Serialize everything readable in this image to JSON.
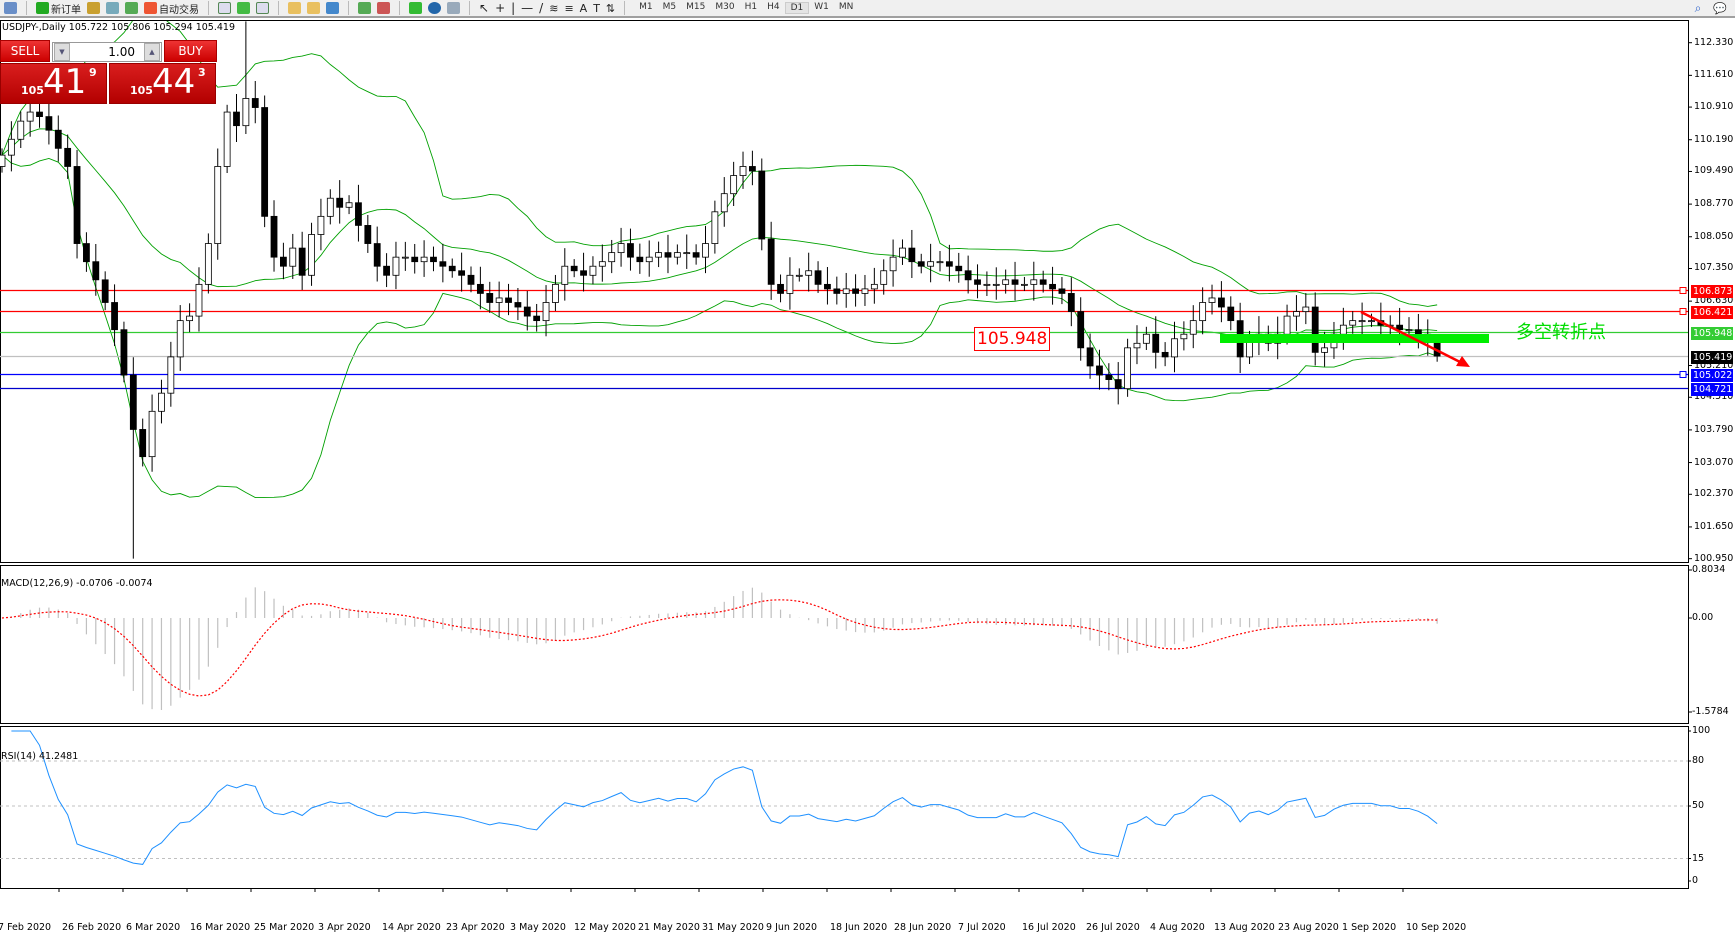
{
  "toolbar": {
    "new_order": "新订单",
    "auto_trading": "自动交易",
    "timeframes": [
      "M1",
      "M5",
      "M15",
      "M30",
      "H1",
      "H4",
      "D1",
      "W1",
      "MN"
    ],
    "active_timeframe": "D1",
    "icons": [
      "zoom-icon",
      "new-order-icon",
      "gold-icon",
      "cloud-icon",
      "signal-icon",
      "auto-trading-icon",
      "bar-chart-icon",
      "candle-chart-icon",
      "line-chart-icon",
      "zoom-in-icon",
      "zoom-out-icon",
      "tile-icon",
      "autoscroll-icon",
      "chart-shift-icon",
      "indicators-icon",
      "periods-icon",
      "templates-icon",
      "cursor-icon",
      "crosshair-icon",
      "vline-icon",
      "hline-icon",
      "trendline-icon",
      "fibo-icon",
      "fibo-fan-icon",
      "text-icon",
      "label-icon",
      "arrows-icon"
    ]
  },
  "chart": {
    "symbol_line": "USDJPY-,Daily  105.722 105.806 105.294 105.419",
    "widget": {
      "sell": "SELL",
      "buy": "BUY",
      "lot": "1.00",
      "sell_big": "105",
      "sell_main": "41",
      "sell_small": "9",
      "buy_big": "105",
      "buy_main": "44",
      "buy_small": "3"
    },
    "annotation_text": "多空转折点",
    "annotation_box": "105.948",
    "colors": {
      "red_line": "#ff0000",
      "green_line": "#00dd00",
      "blue_line": "#0000ff",
      "bands": "#00a000",
      "macd_signal": "#ff0000",
      "rsi": "#1e90ff"
    }
  },
  "chart_data": {
    "type": "candlestick",
    "closes": [
      109.85,
      110.2,
      110.6,
      110.8,
      110.7,
      110.4,
      110.0,
      109.6,
      107.9,
      107.5,
      107.1,
      106.6,
      106.0,
      105.0,
      103.8,
      103.2,
      104.2,
      104.6,
      105.4,
      106.2,
      106.3,
      107.0,
      107.9,
      109.6,
      110.8,
      110.5,
      111.1,
      110.9,
      108.5,
      107.6,
      107.4,
      107.8,
      107.2,
      108.1,
      108.5,
      108.9,
      108.7,
      108.8,
      108.3,
      107.9,
      107.4,
      107.2,
      107.6,
      107.6,
      107.5,
      107.6,
      107.5,
      107.4,
      107.3,
      107.2,
      107.0,
      106.8,
      106.6,
      106.7,
      106.6,
      106.5,
      106.3,
      106.2,
      106.6,
      107.0,
      107.4,
      107.3,
      107.2,
      107.4,
      107.5,
      107.7,
      107.9,
      107.6,
      107.5,
      107.6,
      107.7,
      107.6,
      107.7,
      107.7,
      107.6,
      107.9,
      108.6,
      109.0,
      109.4,
      109.6,
      109.5,
      108.0,
      107.0,
      106.8,
      107.2,
      107.2,
      107.3,
      107.0,
      106.9,
      106.8,
      106.9,
      106.8,
      106.9,
      107.0,
      107.3,
      107.6,
      107.8,
      107.5,
      107.4,
      107.5,
      107.5,
      107.4,
      107.3,
      107.1,
      107.0,
      107.0,
      107.0,
      107.1,
      107.0,
      107.0,
      107.1,
      107.0,
      106.9,
      106.8,
      106.4,
      105.6,
      105.2,
      105.0,
      104.9,
      104.7,
      105.6,
      105.7,
      105.9,
      105.5,
      105.4,
      105.8,
      105.9,
      106.2,
      106.6,
      106.7,
      106.5,
      106.2,
      105.4,
      105.8,
      105.9,
      105.7,
      105.9,
      106.3,
      106.4,
      106.5,
      105.5,
      105.6,
      105.9,
      106.1,
      106.2,
      106.2,
      106.2,
      106.1,
      106.1,
      106.0,
      106.0,
      105.9,
      105.722,
      105.419
    ],
    "last_bar": {
      "open": 105.722,
      "high": 105.806,
      "low": 105.294,
      "close": 105.419
    },
    "price_axis": [
      "112.330",
      "111.610",
      "110.910",
      "110.190",
      "109.490",
      "108.770",
      "108.050",
      "107.350",
      "106.630",
      "105.210",
      "104.510",
      "103.790",
      "103.070",
      "102.370",
      "101.650",
      "100.950"
    ],
    "price_range": [
      100.95,
      112.33
    ],
    "levels": [
      {
        "value": "106.873",
        "color": "#ff0000"
      },
      {
        "value": "106.421",
        "color": "#ff0000"
      },
      {
        "value": "105.948",
        "color": "#33cc33"
      },
      {
        "value": "105.419",
        "color": "#000000"
      },
      {
        "value": "105.022",
        "color": "#0000ff"
      },
      {
        "value": "104.721",
        "color": "#0000ff"
      }
    ],
    "indicators": {
      "bollinger": {
        "period": 20,
        "deviation": 2
      }
    },
    "dates": [
      "7 Feb 2020",
      "26 Feb 2020",
      "6 Mar 2020",
      "16 Mar 2020",
      "25 Mar 2020",
      "3 Apr 2020",
      "14 Apr 2020",
      "23 Apr 2020",
      "3 May 2020",
      "12 May 2020",
      "21 May 2020",
      "31 May 2020",
      "9 Jun 2020",
      "18 Jun 2020",
      "28 Jun 2020",
      "7 Jul 2020",
      "16 Jul 2020",
      "26 Jul 2020",
      "4 Aug 2020",
      "13 Aug 2020",
      "23 Aug 2020",
      "1 Sep 2020",
      "10 Sep 2020"
    ]
  },
  "macd": {
    "label": "MACD(12,26,9) -0.0706 -0.0074",
    "axis": [
      "0.8034",
      "0.00",
      "-1.5784"
    ],
    "max": 0.8034,
    "min": -1.5784
  },
  "rsi": {
    "label": "RSI(14) 41.2481",
    "axis": [
      "100",
      "80",
      "50",
      "15",
      "0"
    ],
    "levels": [
      80,
      50,
      15
    ]
  }
}
